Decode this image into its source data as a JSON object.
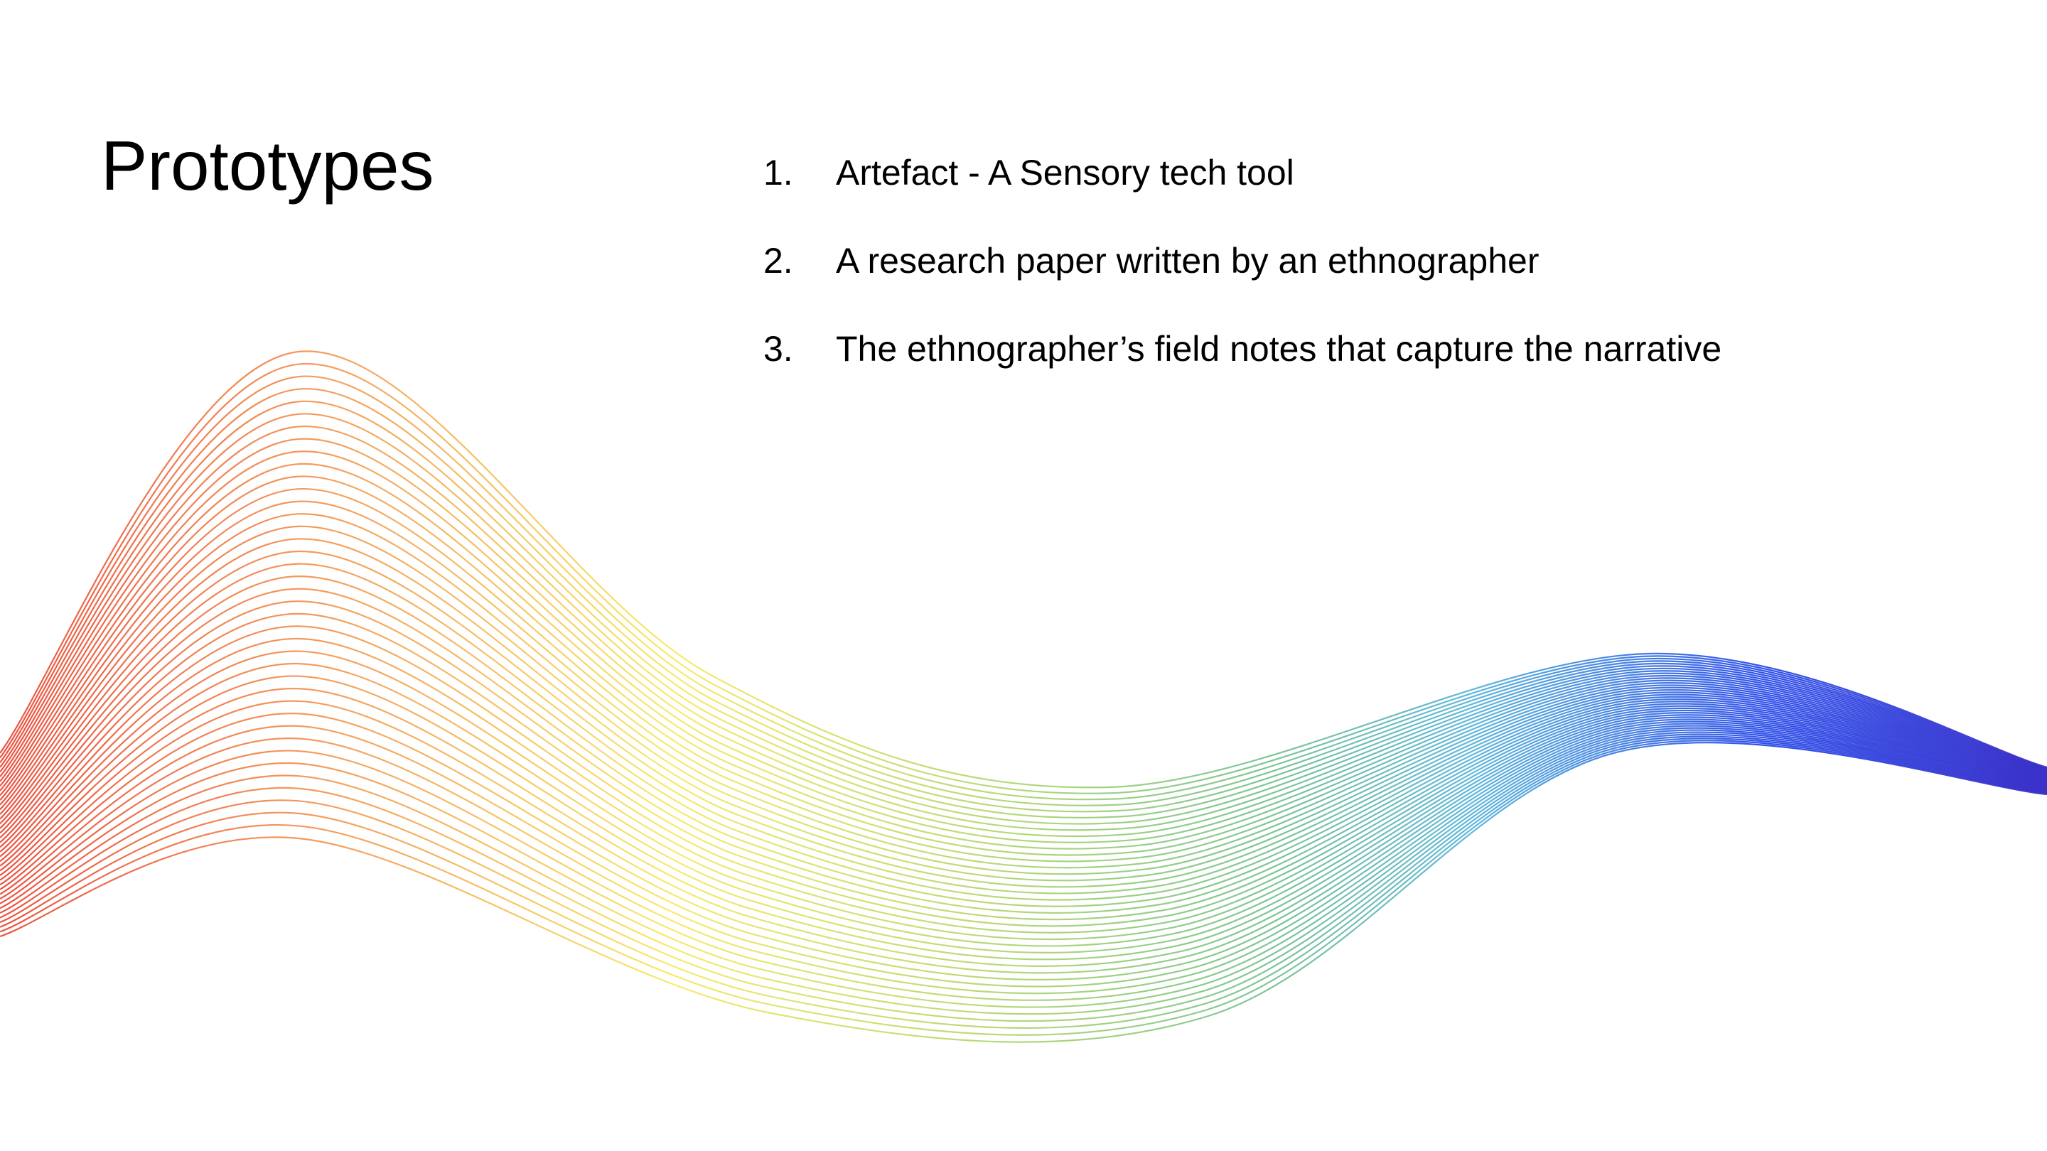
{
  "slide": {
    "title": "Prototypes",
    "items": [
      {
        "number": "1.",
        "text": "Artefact - A Sensory tech tool"
      },
      {
        "number": "2.",
        "text": "A research paper written by an ethnographer"
      },
      {
        "number": "3.",
        "text": "The ethnographer’s field notes that capture the narrative"
      }
    ],
    "decoration": {
      "name": "rainbow-wave-lines",
      "line_count": 40,
      "colors": [
        "#e8402d",
        "#f28a4a",
        "#f7e85a",
        "#a8d36a",
        "#6fbf8a",
        "#4fb0d8",
        "#1a3fe8",
        "#3a2ec8"
      ]
    }
  }
}
